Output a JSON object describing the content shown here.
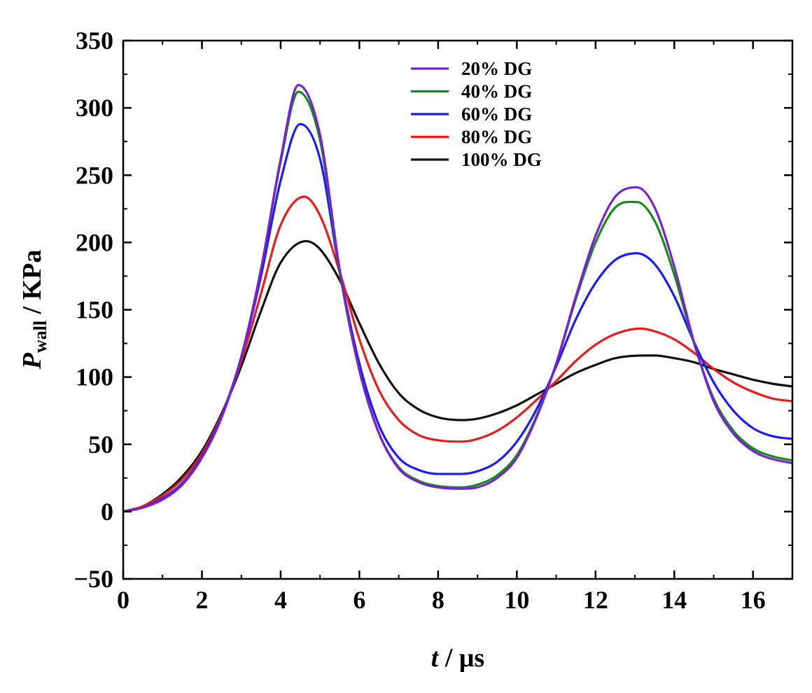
{
  "chart_data": {
    "type": "line",
    "title": "",
    "xlabel": {
      "italic": "t",
      "rest": " / μs"
    },
    "ylabel": {
      "italic": "P",
      "subscript": "wall",
      "rest": " / KPa"
    },
    "xlim": [
      0,
      17
    ],
    "ylim": [
      -50,
      350
    ],
    "x_major_ticks": [
      0,
      2,
      4,
      6,
      8,
      10,
      12,
      14,
      16
    ],
    "x_tick_labels": [
      "0",
      "2",
      "4",
      "6",
      "8",
      "10",
      "12",
      "14",
      "16"
    ],
    "y_major_ticks": [
      -50,
      0,
      50,
      100,
      150,
      200,
      250,
      300,
      350
    ],
    "y_tick_labels": [
      "−50",
      "0",
      "50",
      "100",
      "150",
      "200",
      "250",
      "300",
      "350"
    ],
    "grid": false,
    "legend_position": "top-center",
    "series": [
      {
        "name": "20% DG",
        "color": "#7b1fd2",
        "points": [
          [
            0,
            0
          ],
          [
            0.5,
            3
          ],
          [
            1,
            9
          ],
          [
            1.5,
            20
          ],
          [
            2,
            40
          ],
          [
            2.5,
            70
          ],
          [
            3,
            115
          ],
          [
            3.5,
            180
          ],
          [
            4,
            262
          ],
          [
            4.45,
            317
          ],
          [
            5,
            280
          ],
          [
            5.5,
            180
          ],
          [
            6,
            105
          ],
          [
            6.5,
            58
          ],
          [
            7,
            32
          ],
          [
            7.5,
            22
          ],
          [
            8,
            18
          ],
          [
            8.6,
            17
          ],
          [
            9,
            18
          ],
          [
            9.5,
            25
          ],
          [
            10,
            40
          ],
          [
            10.5,
            70
          ],
          [
            11,
            110
          ],
          [
            11.5,
            160
          ],
          [
            12,
            205
          ],
          [
            12.5,
            234
          ],
          [
            13.05,
            241
          ],
          [
            13.5,
            226
          ],
          [
            14,
            182
          ],
          [
            14.5,
            126
          ],
          [
            15,
            82
          ],
          [
            15.5,
            58
          ],
          [
            16,
            45
          ],
          [
            16.5,
            39
          ],
          [
            17,
            36
          ]
        ]
      },
      {
        "name": "40% DG",
        "color": "#138c1a",
        "points": [
          [
            0,
            0
          ],
          [
            0.5,
            3
          ],
          [
            1,
            9
          ],
          [
            1.5,
            20
          ],
          [
            2,
            40
          ],
          [
            2.5,
            70
          ],
          [
            3,
            115
          ],
          [
            3.5,
            180
          ],
          [
            4,
            260
          ],
          [
            4.45,
            312
          ],
          [
            5,
            276
          ],
          [
            5.5,
            178
          ],
          [
            6,
            105
          ],
          [
            6.5,
            58
          ],
          [
            7,
            33
          ],
          [
            7.5,
            23
          ],
          [
            8,
            19
          ],
          [
            8.6,
            18
          ],
          [
            9,
            20
          ],
          [
            9.5,
            27
          ],
          [
            10,
            42
          ],
          [
            10.5,
            71
          ],
          [
            11,
            110
          ],
          [
            11.5,
            158
          ],
          [
            12,
            200
          ],
          [
            12.5,
            226
          ],
          [
            13.05,
            230
          ],
          [
            13.5,
            216
          ],
          [
            14,
            176
          ],
          [
            14.5,
            125
          ],
          [
            15,
            84
          ],
          [
            15.5,
            60
          ],
          [
            16,
            47
          ],
          [
            16.5,
            41
          ],
          [
            17,
            38
          ]
        ]
      },
      {
        "name": "60% DG",
        "color": "#1a1aff",
        "points": [
          [
            0,
            0
          ],
          [
            0.5,
            3
          ],
          [
            1,
            10
          ],
          [
            1.5,
            21
          ],
          [
            2,
            41
          ],
          [
            2.5,
            71
          ],
          [
            3,
            115
          ],
          [
            3.5,
            175
          ],
          [
            4,
            246
          ],
          [
            4.5,
            288
          ],
          [
            5,
            262
          ],
          [
            5.5,
            178
          ],
          [
            6,
            110
          ],
          [
            6.5,
            64
          ],
          [
            7,
            40
          ],
          [
            7.5,
            31
          ],
          [
            8,
            28
          ],
          [
            8.6,
            28
          ],
          [
            9,
            30
          ],
          [
            9.5,
            37
          ],
          [
            10,
            52
          ],
          [
            10.5,
            76
          ],
          [
            11,
            108
          ],
          [
            11.5,
            143
          ],
          [
            12,
            170
          ],
          [
            12.5,
            187
          ],
          [
            13.05,
            192
          ],
          [
            13.5,
            184
          ],
          [
            14,
            160
          ],
          [
            14.5,
            126
          ],
          [
            15,
            96
          ],
          [
            15.5,
            75
          ],
          [
            16,
            62
          ],
          [
            16.5,
            56
          ],
          [
            17,
            54
          ]
        ]
      },
      {
        "name": "80% DG",
        "color": "#ea1b1b",
        "points": [
          [
            0,
            0
          ],
          [
            0.5,
            4
          ],
          [
            1,
            12
          ],
          [
            1.5,
            24
          ],
          [
            2,
            43
          ],
          [
            2.5,
            72
          ],
          [
            3,
            112
          ],
          [
            3.5,
            162
          ],
          [
            4,
            213
          ],
          [
            4.6,
            234
          ],
          [
            5,
            220
          ],
          [
            5.5,
            178
          ],
          [
            6,
            128
          ],
          [
            6.5,
            90
          ],
          [
            7,
            68
          ],
          [
            7.5,
            57
          ],
          [
            8,
            53
          ],
          [
            8.6,
            52
          ],
          [
            9,
            54
          ],
          [
            9.5,
            60
          ],
          [
            10,
            70
          ],
          [
            10.5,
            83
          ],
          [
            11,
            97
          ],
          [
            11.5,
            112
          ],
          [
            12,
            124
          ],
          [
            12.5,
            132
          ],
          [
            13.15,
            136
          ],
          [
            13.5,
            134
          ],
          [
            14,
            128
          ],
          [
            14.5,
            118
          ],
          [
            15,
            106
          ],
          [
            15.5,
            96
          ],
          [
            16,
            89
          ],
          [
            16.5,
            84
          ],
          [
            17,
            82
          ]
        ]
      },
      {
        "name": "100% DG",
        "color": "#111111",
        "points": [
          [
            0,
            0
          ],
          [
            0.5,
            4
          ],
          [
            1,
            13
          ],
          [
            1.5,
            26
          ],
          [
            2,
            45
          ],
          [
            2.5,
            73
          ],
          [
            3,
            108
          ],
          [
            3.5,
            149
          ],
          [
            4,
            185
          ],
          [
            4.65,
            201
          ],
          [
            5,
            195
          ],
          [
            5.5,
            172
          ],
          [
            6,
            140
          ],
          [
            6.5,
            110
          ],
          [
            7,
            88
          ],
          [
            7.5,
            76
          ],
          [
            8,
            70
          ],
          [
            8.6,
            68
          ],
          [
            9,
            69
          ],
          [
            9.5,
            73
          ],
          [
            10,
            79
          ],
          [
            10.5,
            87
          ],
          [
            11,
            95
          ],
          [
            11.5,
            103
          ],
          [
            12,
            109
          ],
          [
            12.5,
            114
          ],
          [
            13.25,
            116
          ],
          [
            13.5,
            116
          ],
          [
            14,
            114
          ],
          [
            14.5,
            111
          ],
          [
            15,
            106
          ],
          [
            15.5,
            102
          ],
          [
            16,
            98
          ],
          [
            16.5,
            95
          ],
          [
            17,
            93
          ]
        ]
      }
    ]
  }
}
